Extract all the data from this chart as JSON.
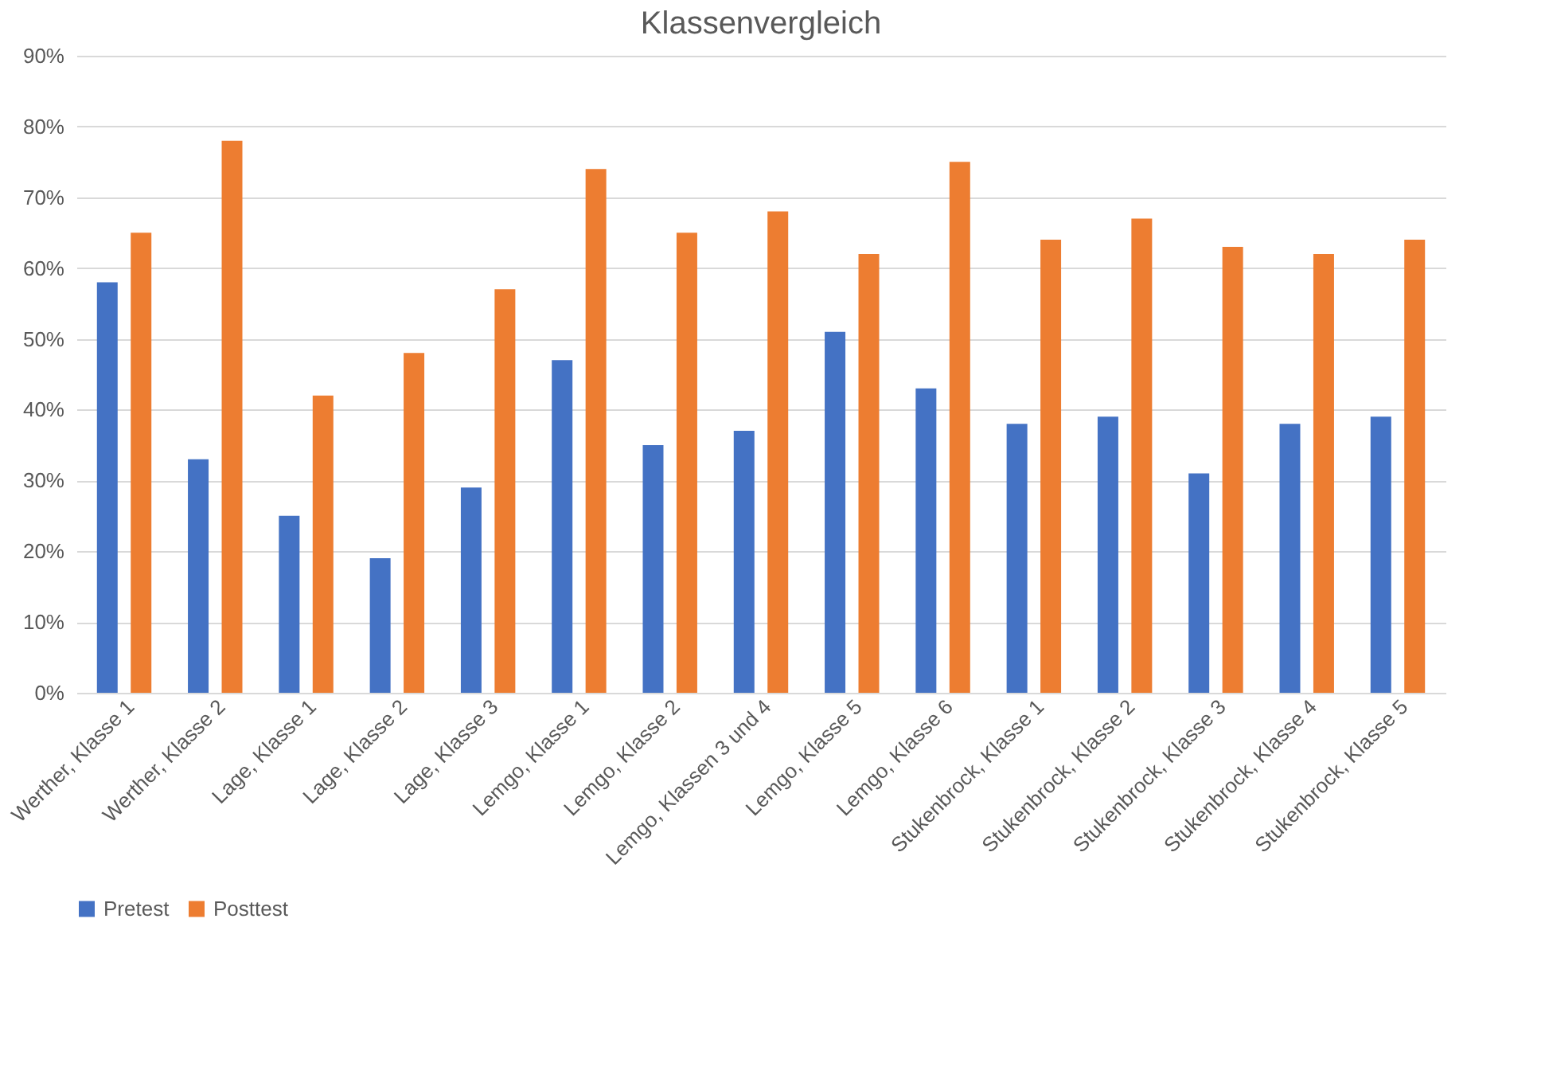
{
  "chart_data": {
    "type": "bar",
    "title": "Klassenvergleich",
    "categories": [
      "Werther, Klasse 1",
      "Werther, Klasse 2",
      "Lage, Klasse 1",
      "Lage, Klasse 2",
      "Lage, Klasse 3",
      "Lemgo, Klasse 1",
      "Lemgo, Klasse 2",
      "Lemgo, Klassen 3 und 4",
      "Lemgo, Klasse 5",
      "Lemgo, Klasse 6",
      "Stukenbrock, Klasse 1",
      "Stukenbrock, Klasse 2",
      "Stukenbrock, Klasse 3",
      "Stukenbrock, Klasse 4",
      "Stukenbrock, Klasse 5"
    ],
    "series": [
      {
        "name": "Pretest",
        "color": "#4472c4",
        "values": [
          58,
          33,
          25,
          19,
          29,
          47,
          35,
          37,
          51,
          43,
          38,
          39,
          31,
          38,
          39
        ]
      },
      {
        "name": "Posttest",
        "color": "#ed7d31",
        "values": [
          65,
          78,
          42,
          48,
          57,
          74,
          65,
          68,
          62,
          75,
          64,
          67,
          63,
          62,
          64
        ]
      }
    ],
    "ylim": [
      0,
      90
    ],
    "yticks": [
      {
        "value": 0,
        "label": "0%"
      },
      {
        "value": 10,
        "label": "10%"
      },
      {
        "value": 20,
        "label": "20%"
      },
      {
        "value": 30,
        "label": "30%"
      },
      {
        "value": 40,
        "label": "40%"
      },
      {
        "value": 50,
        "label": "50%"
      },
      {
        "value": 60,
        "label": "60%"
      },
      {
        "value": 70,
        "label": "70%"
      },
      {
        "value": 80,
        "label": "80%"
      },
      {
        "value": 90,
        "label": "90%"
      }
    ],
    "grid": "y",
    "legend": "bottom"
  }
}
